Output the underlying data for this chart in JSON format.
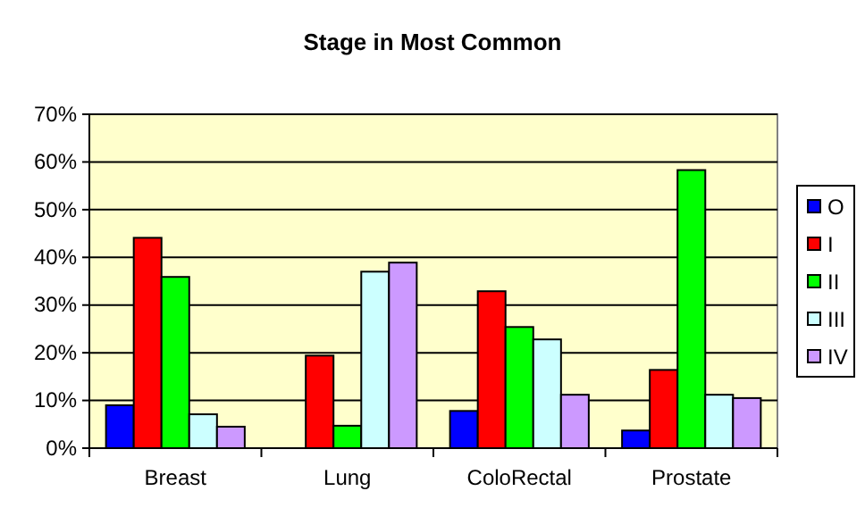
{
  "chart_data": {
    "type": "bar",
    "title": "Stage in Most Common",
    "categories": [
      "Breast",
      "Lung",
      "ColoRectal",
      "Prostate"
    ],
    "series": [
      {
        "name": "O",
        "color": "#0000ff",
        "values": [
          9.0,
          0,
          7.8,
          3.7
        ]
      },
      {
        "name": "I",
        "color": "#ff0000",
        "values": [
          44.1,
          19.4,
          32.9,
          16.4
        ]
      },
      {
        "name": "II",
        "color": "#00ff00",
        "values": [
          35.9,
          4.7,
          25.4,
          58.3
        ]
      },
      {
        "name": "III",
        "color": "#ccffff",
        "values": [
          7.1,
          37.0,
          22.8,
          11.2
        ]
      },
      {
        "name": "IV",
        "color": "#cc99ff",
        "values": [
          4.5,
          38.9,
          11.2,
          10.5
        ]
      }
    ],
    "ylim": [
      0,
      70
    ],
    "yticks": [
      {
        "value": 0,
        "label": "0%"
      },
      {
        "value": 10,
        "label": "10%"
      },
      {
        "value": 20,
        "label": "20%"
      },
      {
        "value": 30,
        "label": "30%"
      },
      {
        "value": 40,
        "label": "40%"
      },
      {
        "value": 50,
        "label": "50%"
      },
      {
        "value": 60,
        "label": "60%"
      },
      {
        "value": 70,
        "label": "70%"
      }
    ],
    "grid": "y",
    "legend": "right"
  }
}
